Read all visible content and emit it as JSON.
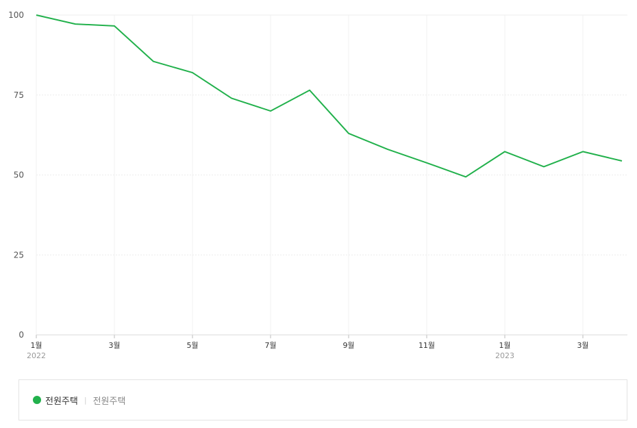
{
  "chart_data": {
    "type": "line",
    "x": [
      "2022-01",
      "2022-02",
      "2022-03",
      "2022-04",
      "2022-05",
      "2022-06",
      "2022-07",
      "2022-08",
      "2022-09",
      "2022-10",
      "2022-11",
      "2022-12",
      "2023-01",
      "2023-02",
      "2023-03",
      "2023-04"
    ],
    "x_tick_labels": [
      {
        "month": "1월",
        "year": "2022"
      },
      {
        "month": "3월",
        "year": ""
      },
      {
        "month": "5월",
        "year": ""
      },
      {
        "month": "7월",
        "year": ""
      },
      {
        "month": "9월",
        "year": ""
      },
      {
        "month": "11월",
        "year": ""
      },
      {
        "month": "1월",
        "year": "2023"
      },
      {
        "month": "3월",
        "year": ""
      }
    ],
    "y_ticks": [
      0,
      25,
      50,
      75,
      100
    ],
    "ylim": [
      0,
      100
    ],
    "grid": true,
    "series": [
      {
        "name": "전원주택",
        "color": "#22b14c",
        "values": [
          100,
          97.2,
          96.6,
          85.5,
          82,
          74,
          70,
          76.5,
          63,
          58,
          53.8,
          49.4,
          57.3,
          52.6,
          57.3,
          54.4
        ]
      }
    ],
    "legend": {
      "position": "bottom",
      "label": "전원주택",
      "sublabel": "전원주택"
    }
  }
}
